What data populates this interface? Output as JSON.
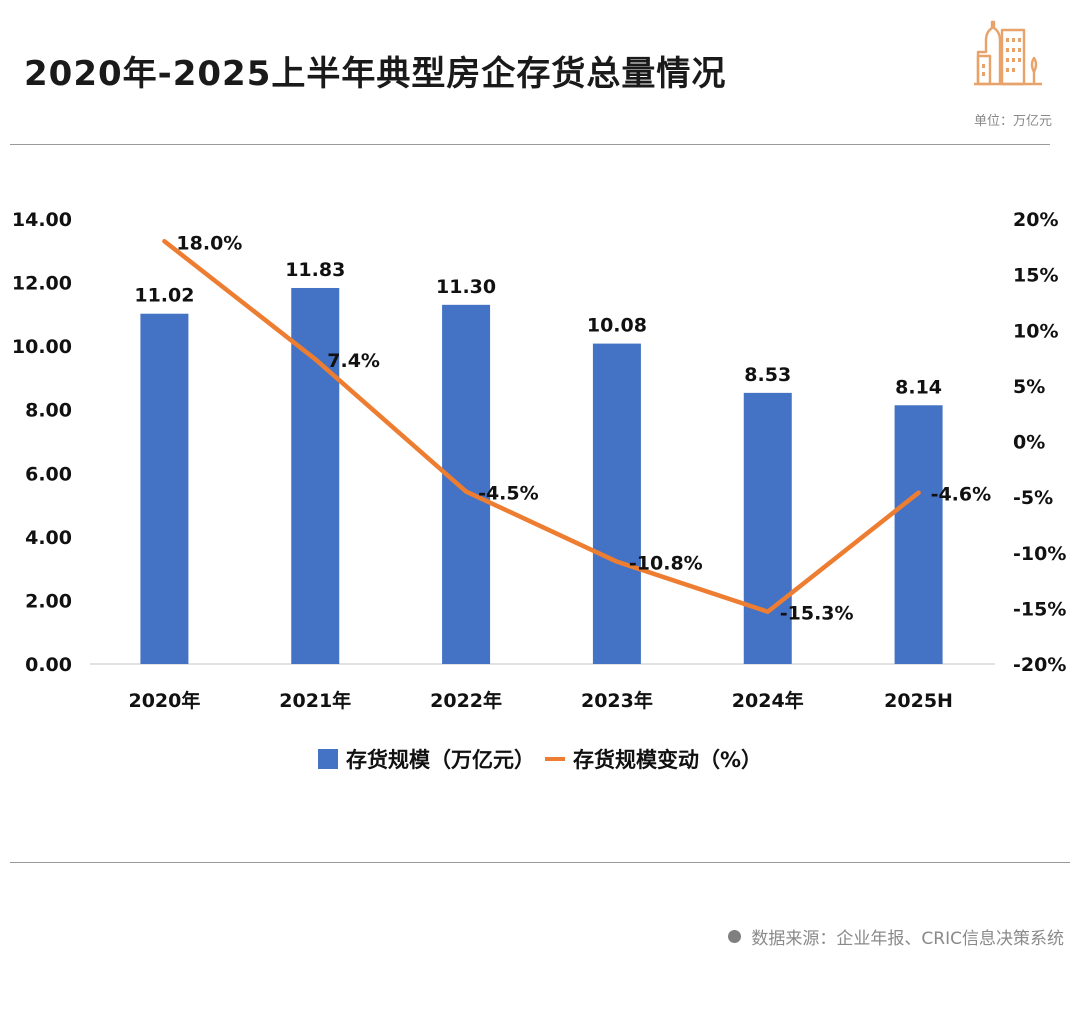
{
  "header": {
    "title": "2020年-2025上半年典型房企存货总量情况",
    "unit_label": "单位：万亿元",
    "logo_icon": "city-buildings-icon"
  },
  "colors": {
    "bar": "#4472C4",
    "line": "#ED7D31",
    "logo": "#E8A36A",
    "divider": "#9a9a9a"
  },
  "chart_data": {
    "type": "bar+line",
    "title": "2020年-2025上半年典型房企存货总量情况",
    "categories": [
      "2020年",
      "2021年",
      "2022年",
      "2023年",
      "2024年",
      "2025H"
    ],
    "series": [
      {
        "name": "存货规模（万亿元）",
        "type": "bar",
        "axis": "left",
        "values": [
          11.02,
          11.83,
          11.3,
          10.08,
          8.53,
          8.14
        ],
        "labels": [
          "11.02",
          "11.83",
          "11.30",
          "10.08",
          "8.53",
          "8.14"
        ]
      },
      {
        "name": "存货规模变动（%）",
        "type": "line",
        "axis": "right",
        "values": [
          18.0,
          7.4,
          -4.5,
          -10.8,
          -15.3,
          -4.6
        ],
        "labels": [
          "18.0%",
          "7.4%",
          "-4.5%",
          "-10.8%",
          "-15.3%",
          "-4.6%"
        ]
      }
    ],
    "y_left": {
      "range": [
        0,
        14
      ],
      "ticks": [
        0,
        2,
        4,
        6,
        8,
        10,
        12,
        14
      ],
      "tick_labels": [
        "0.00",
        "2.00",
        "4.00",
        "6.00",
        "8.00",
        "10.00",
        "12.00",
        "14.00"
      ]
    },
    "y_right": {
      "range": [
        -20,
        20
      ],
      "ticks": [
        -20,
        -15,
        -10,
        -5,
        0,
        5,
        10,
        15,
        20
      ],
      "tick_labels": [
        "-20%",
        "-15%",
        "-10%",
        "-5%",
        "0%",
        "5%",
        "10%",
        "15%",
        "20%"
      ]
    },
    "grid": false,
    "legend": {
      "position": "bottom",
      "entries": [
        "存货规模（万亿元）",
        "存货规模变动（%）"
      ]
    }
  },
  "footer": {
    "source": "数据来源：企业年报、CRIC信息决策系统"
  }
}
